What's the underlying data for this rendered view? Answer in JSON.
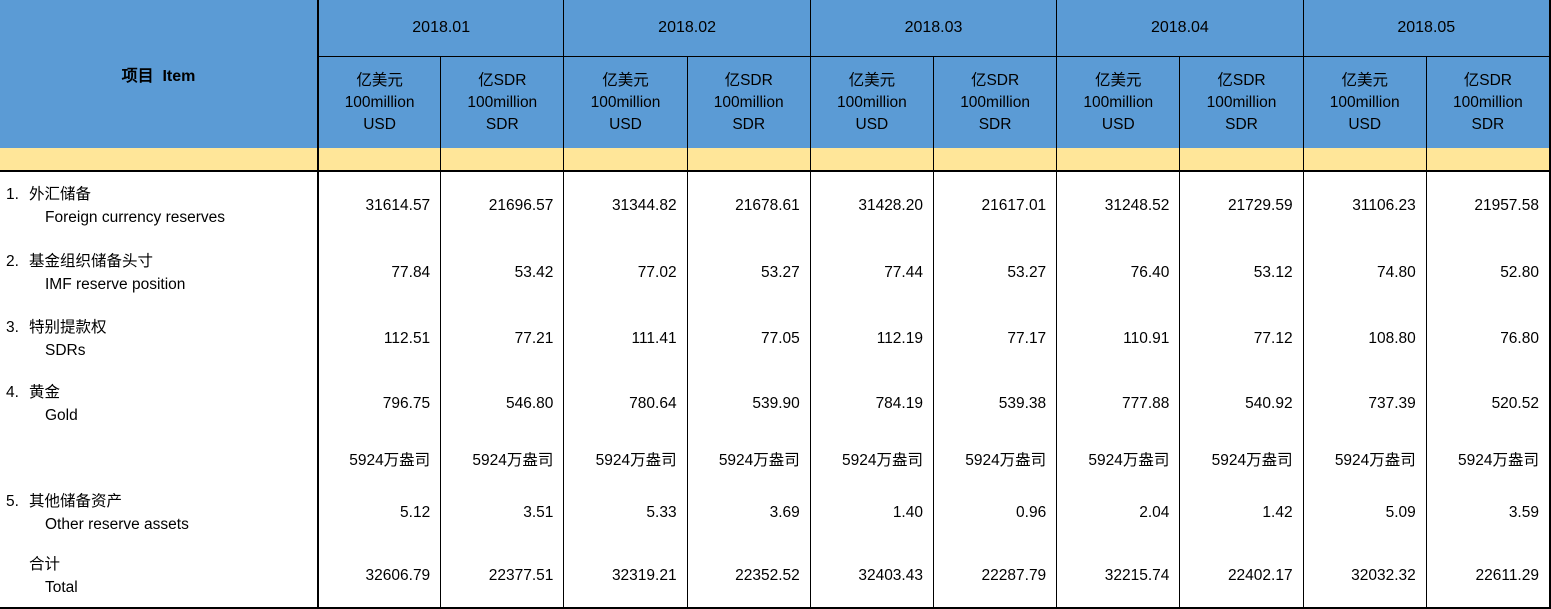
{
  "colors": {
    "header_blue": "#5B9BD5",
    "band_yellow": "#FFE699",
    "border": "#000000",
    "text": "#000000"
  },
  "header": {
    "item_label": "项目  Item",
    "months": [
      "2018.01",
      "2018.02",
      "2018.03",
      "2018.04",
      "2018.05"
    ],
    "usd_unit": {
      "cn": "亿美元",
      "line2": "100million",
      "line3": "USD"
    },
    "sdr_unit": {
      "cn": "亿SDR",
      "line2": "100million",
      "line3": "SDR"
    }
  },
  "rows": [
    {
      "no": "1.",
      "cn": "外汇储备",
      "en": "Foreign currency reserves",
      "values": [
        "31614.57",
        "21696.57",
        "31344.82",
        "21678.61",
        "31428.20",
        "21617.01",
        "31248.52",
        "21729.59",
        "31106.23",
        "21957.58"
      ]
    },
    {
      "no": "2.",
      "cn": "基金组织储备头寸",
      "en": "IMF reserve position",
      "values": [
        "77.84",
        "53.42",
        "77.02",
        "53.27",
        "77.44",
        "53.27",
        "76.40",
        "53.12",
        "74.80",
        "52.80"
      ]
    },
    {
      "no": "3.",
      "cn": "特别提款权",
      "en": "SDRs",
      "values": [
        "112.51",
        "77.21",
        "111.41",
        "77.05",
        "112.19",
        "77.17",
        "110.91",
        "77.12",
        "108.80",
        "76.80"
      ]
    },
    {
      "no": "4.",
      "cn": "黄金",
      "en": "Gold",
      "values": [
        "796.75",
        "546.80",
        "780.64",
        "539.90",
        "784.19",
        "539.38",
        "777.88",
        "540.92",
        "737.39",
        "520.52"
      ]
    },
    {
      "no": "",
      "cn": "",
      "en": "",
      "values": [
        "5924万盎司",
        "5924万盎司",
        "5924万盎司",
        "5924万盎司",
        "5924万盎司",
        "5924万盎司",
        "5924万盎司",
        "5924万盎司",
        "5924万盎司",
        "5924万盎司"
      ]
    },
    {
      "no": "5.",
      "cn": "其他储备资产",
      "en": "Other reserve assets",
      "values": [
        "5.12",
        "3.51",
        "5.33",
        "3.69",
        "1.40",
        "0.96",
        "2.04",
        "1.42",
        "5.09",
        "3.59"
      ]
    },
    {
      "no": "",
      "cn": "合计",
      "en": "Total",
      "values": [
        "32606.79",
        "22377.51",
        "32319.21",
        "22352.52",
        "32403.43",
        "22287.79",
        "32215.74",
        "22402.17",
        "32032.32",
        "22611.29"
      ]
    }
  ]
}
